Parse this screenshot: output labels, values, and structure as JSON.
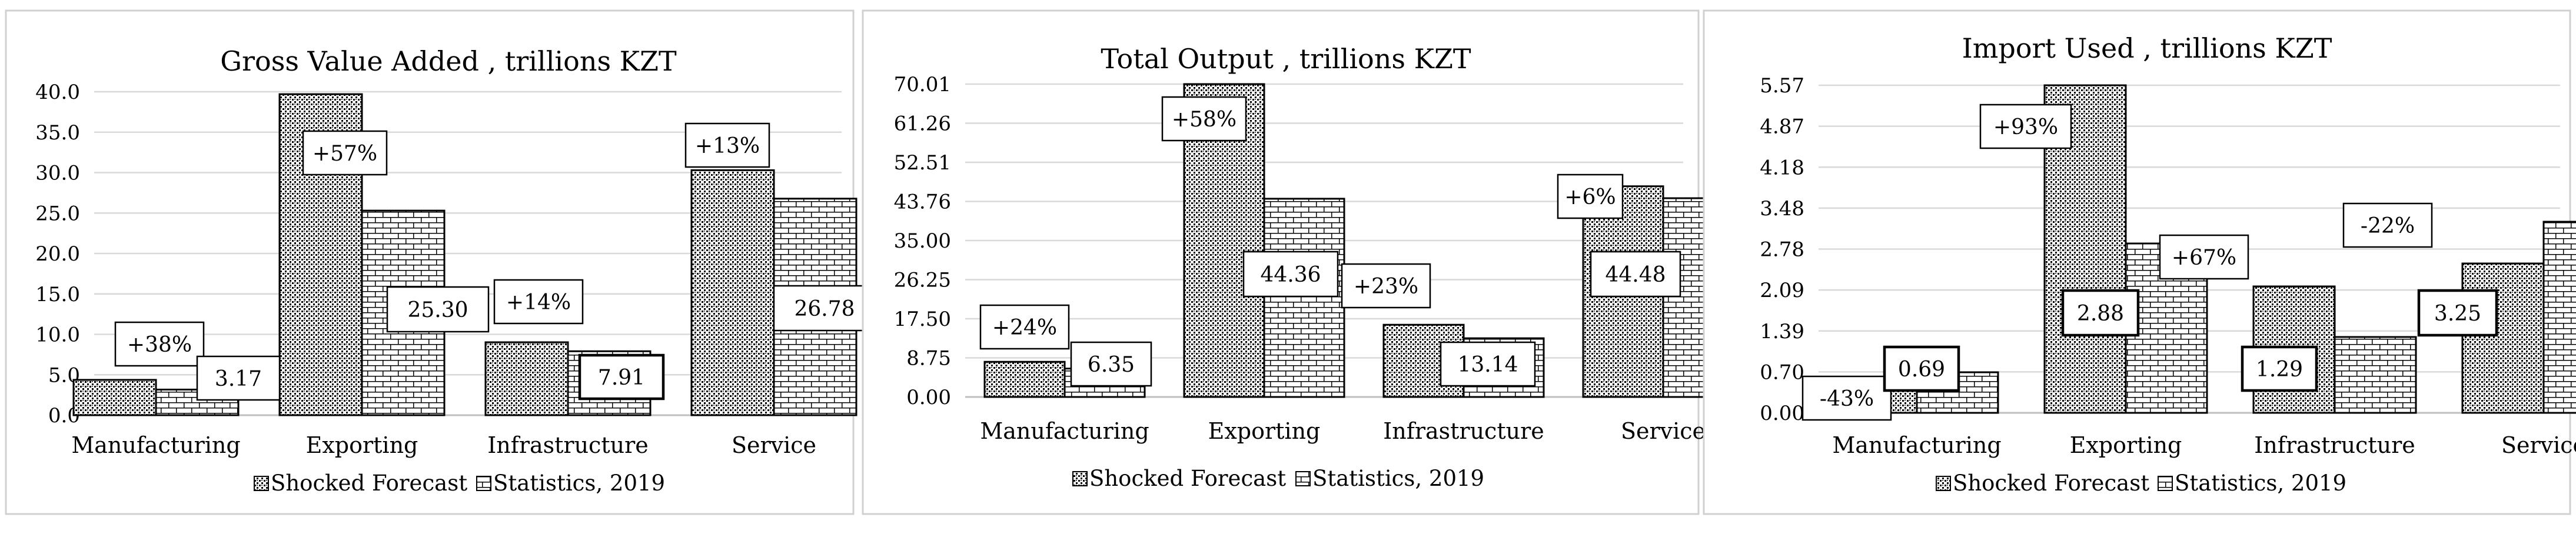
{
  "colors": {
    "frame": "#d0d0d0",
    "grid": "#d9d9d9",
    "bar_stroke": "#000000"
  },
  "chart_data": [
    {
      "type": "bar",
      "title": "Gross Value Added , trillions KZT",
      "categories": [
        "Manufacturing",
        "Exporting",
        "Infrastructure",
        "Service"
      ],
      "yticks": [
        "0.0",
        "5.0",
        "10.0",
        "15.0",
        "20.0",
        "25.0",
        "30.0",
        "35.0",
        "40.0"
      ],
      "ylim": [
        0,
        40
      ],
      "series": [
        {
          "name": "Shocked Forecast",
          "pattern": "dots",
          "values": [
            4.37,
            39.7,
            9.02,
            30.3
          ]
        },
        {
          "name": "Statistics, 2019",
          "pattern": "bricks",
          "values": [
            3.17,
            25.3,
            7.91,
            26.78
          ]
        }
      ],
      "change_labels": [
        "+38%",
        "+57%",
        "+14%",
        "+13%"
      ],
      "value_labels": [
        "3.17",
        "25.30",
        "7.91",
        "26.78"
      ],
      "legend": [
        "Shocked Forecast",
        "Statistics, 2019"
      ]
    },
    {
      "type": "bar",
      "title": "Total Output , trillions KZT",
      "categories": [
        "Manufacturing",
        "Exporting",
        "Infrastructure",
        "Service"
      ],
      "yticks": [
        "0.00",
        "8.75",
        "17.50",
        "26.25",
        "35.00",
        "43.76",
        "52.51",
        "61.26",
        "70.01"
      ],
      "ylim": [
        0,
        70.01
      ],
      "series": [
        {
          "name": "Shocked Forecast",
          "pattern": "dots",
          "values": [
            7.87,
            70.01,
            16.16,
            47.15
          ]
        },
        {
          "name": "Statistics, 2019",
          "pattern": "bricks",
          "values": [
            6.35,
            44.36,
            13.14,
            44.48
          ]
        }
      ],
      "change_labels": [
        "+24%",
        "+58%",
        "+23%",
        "+6%"
      ],
      "value_labels": [
        "6.35",
        "44.36",
        "13.14",
        "44.48"
      ],
      "legend": [
        "Shocked Forecast",
        "Statistics, 2019"
      ]
    },
    {
      "type": "bar",
      "title": "Import Used , trillions KZT",
      "categories": [
        "Manufacturing",
        "Exporting",
        "Infrastructure",
        "Service"
      ],
      "yticks": [
        "0.00",
        "0.70",
        "1.39",
        "2.09",
        "2.78",
        "3.48",
        "4.18",
        "4.87",
        "5.57"
      ],
      "ylim": [
        0,
        5.57
      ],
      "series": [
        {
          "name": "Shocked Forecast",
          "pattern": "dots",
          "values": [
            0.39,
            5.57,
            2.15,
            2.54
          ]
        },
        {
          "name": "Statistics, 2019",
          "pattern": "bricks",
          "values": [
            0.69,
            2.88,
            1.29,
            3.25
          ]
        }
      ],
      "change_labels": [
        "-43%",
        "+93%",
        "+67%",
        "-22%"
      ],
      "value_labels": [
        "0.69",
        "2.88",
        "1.29",
        "3.25"
      ],
      "legend": [
        "Shocked Forecast",
        "Statistics, 2019"
      ]
    }
  ]
}
